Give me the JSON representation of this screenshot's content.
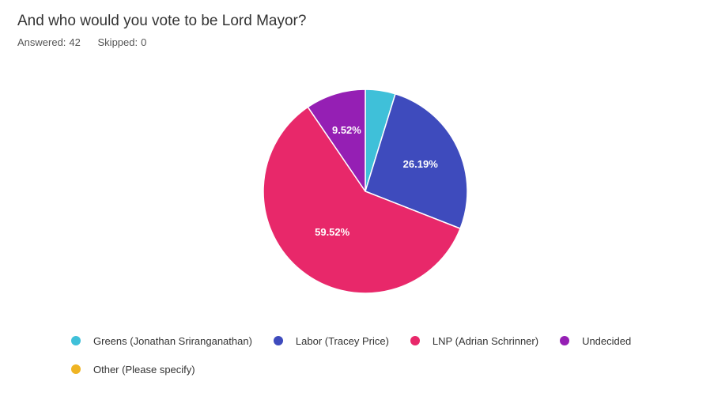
{
  "question": {
    "title": "And who would you vote to be Lord Mayor?",
    "answered_label": "Answered:",
    "answered_value": "42",
    "skipped_label": "Skipped:",
    "skipped_value": "0"
  },
  "chart_data": {
    "type": "pie",
    "categories": [
      "Greens (Jonathan Sriranganathan)",
      "Labor (Tracey Price)",
      "LNP (Adrian Schrinner)",
      "Undecided",
      "Other (Please specify)"
    ],
    "values": [
      4.76,
      26.19,
      59.52,
      9.52,
      0
    ],
    "data_labels": [
      "",
      "26.19%",
      "59.52%",
      "9.52%",
      ""
    ],
    "colors": [
      "#3fc0d9",
      "#3e4bbd",
      "#e8286a",
      "#951fb4",
      "#efb423"
    ],
    "legend_position": "bottom",
    "start_angle_deg": 0,
    "direction": "clockwise"
  }
}
